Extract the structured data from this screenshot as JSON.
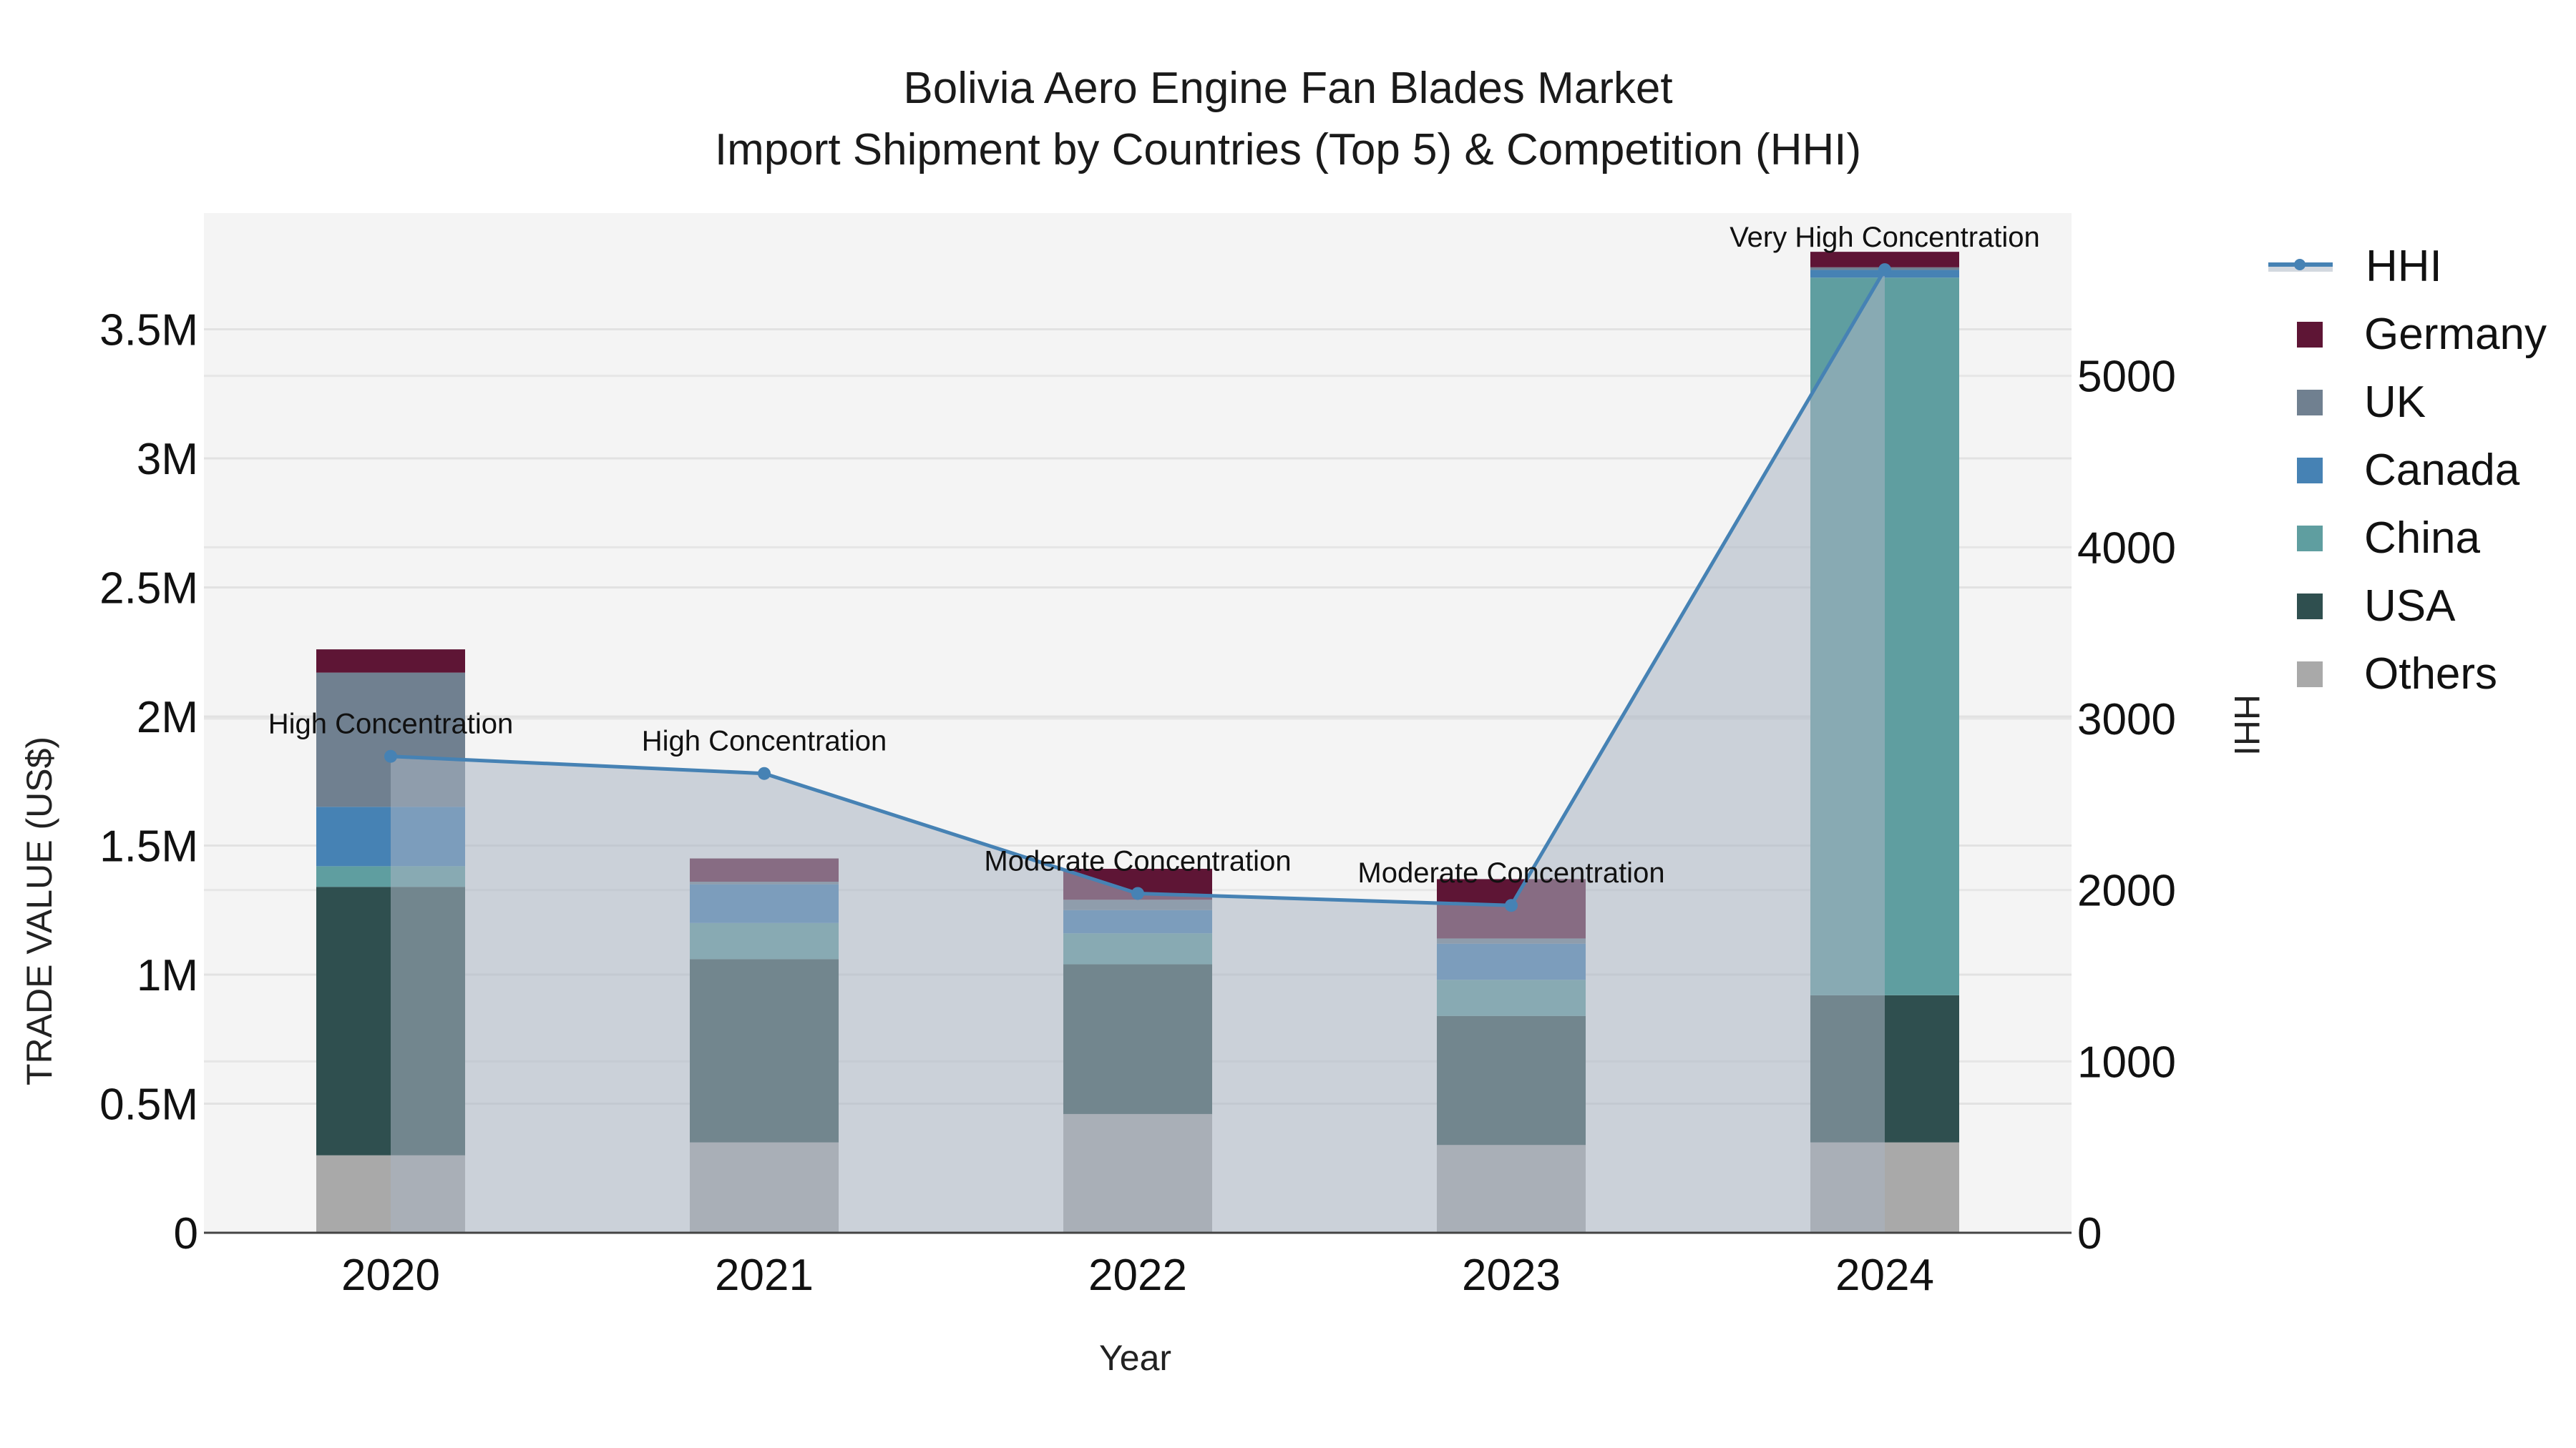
{
  "title": {
    "line1": "Bolivia Aero Engine Fan Blades Market",
    "line2": "Import Shipment by Countries (Top 5) & Competition (HHI)"
  },
  "axes": {
    "x_title": "Year",
    "y_left_title": "TRADE VALUE (US$)",
    "y_right_title": "HHI",
    "y_left_ticks": [
      "0",
      "0.5M",
      "1M",
      "1.5M",
      "2M",
      "2.5M",
      "3M",
      "3.5M"
    ],
    "y_right_ticks": [
      "0",
      "1000",
      "2000",
      "3000",
      "4000",
      "5000"
    ]
  },
  "legend": [
    {
      "name": "HHI",
      "color": "#4682B4",
      "type": "line"
    },
    {
      "name": "Germany",
      "color": "#5E1535",
      "type": "bar"
    },
    {
      "name": "UK",
      "color": "#708090",
      "type": "bar"
    },
    {
      "name": "Canada",
      "color": "#4682B4",
      "type": "bar"
    },
    {
      "name": "China",
      "color": "#5F9EA0",
      "type": "bar"
    },
    {
      "name": "USA",
      "color": "#2F4F4F",
      "type": "bar"
    },
    {
      "name": "Others",
      "color": "#A9A9A9",
      "type": "bar"
    }
  ],
  "chart_data": {
    "type": "bar",
    "stacked": true,
    "title": "Bolivia Aero Engine Fan Blades Market — Import Shipment by Countries (Top 5) & Competition (HHI)",
    "xlabel": "Year",
    "ylabel": "TRADE VALUE (US$)",
    "y2label": "HHI",
    "categories": [
      "2020",
      "2021",
      "2022",
      "2023",
      "2024"
    ],
    "ylim": [
      0,
      3950000
    ],
    "y2lim": [
      0,
      5950
    ],
    "series": [
      {
        "name": "Others",
        "color": "#A9A9A9",
        "values": [
          300000,
          350000,
          460000,
          340000,
          350000
        ]
      },
      {
        "name": "USA",
        "color": "#2F4F4F",
        "values": [
          1040000,
          710000,
          580000,
          500000,
          570000
        ]
      },
      {
        "name": "China",
        "color": "#5F9EA0",
        "values": [
          80000,
          140000,
          120000,
          140000,
          2780000
        ]
      },
      {
        "name": "Canada",
        "color": "#4682B4",
        "values": [
          230000,
          150000,
          90000,
          140000,
          30000
        ]
      },
      {
        "name": "UK",
        "color": "#708090",
        "values": [
          520000,
          10000,
          40000,
          20000,
          10000
        ]
      },
      {
        "name": "Germany",
        "color": "#5E1535",
        "values": [
          90000,
          90000,
          120000,
          230000,
          60000
        ]
      }
    ],
    "line_series": {
      "name": "HHI",
      "axis": "right",
      "color": "#4682B4",
      "fill": "tozeroy",
      "values": [
        2780,
        2680,
        1980,
        1910,
        5620
      ],
      "annotations": [
        "High Concentration",
        "High Concentration",
        "Moderate Concentration",
        "Moderate Concentration",
        "Very High Concentration"
      ]
    },
    "grid": true,
    "legend_position": "right"
  }
}
